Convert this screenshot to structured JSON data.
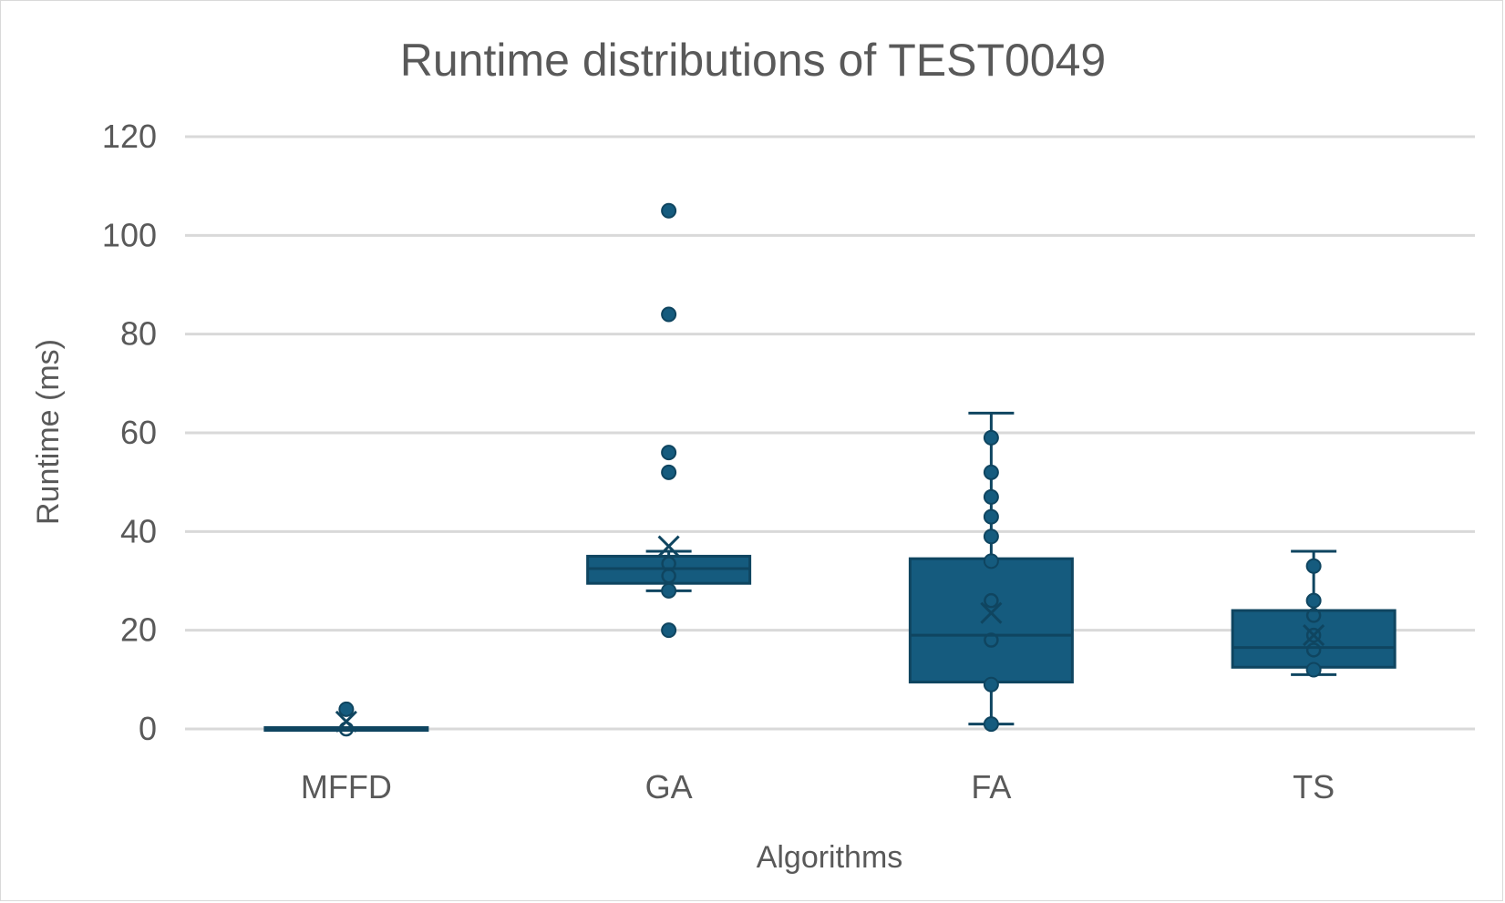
{
  "chart_data": {
    "type": "box",
    "title": "Runtime distributions of TEST0049",
    "xlabel": "Algorithms",
    "ylabel": "Runtime (ms)",
    "ylim": [
      0,
      120
    ],
    "yticks": [
      0,
      20,
      40,
      60,
      80,
      100,
      120
    ],
    "grid": true,
    "color": "#155b7e",
    "edge_color": "#0f4560",
    "categories": [
      "MFFD",
      "GA",
      "FA",
      "TS"
    ],
    "boxes": [
      {
        "category": "MFFD",
        "whisker_low": 0,
        "q1": 0,
        "median": 0,
        "q3": 0,
        "whisker_high": 0,
        "mean": 1.5,
        "inner_points": [
          0
        ],
        "outliers": [
          4
        ]
      },
      {
        "category": "GA",
        "whisker_low": 28,
        "q1": 29.5,
        "median": 32.5,
        "q3": 35,
        "whisker_high": 36,
        "mean": 37,
        "inner_points": [
          31,
          33.5
        ],
        "outliers": [
          20,
          28,
          52,
          56,
          84,
          105
        ]
      },
      {
        "category": "FA",
        "whisker_low": 1,
        "q1": 9.5,
        "median": 19,
        "q3": 34.5,
        "whisker_high": 64,
        "mean": 23.5,
        "inner_points": [
          18,
          26
        ],
        "outliers": [
          1,
          9,
          34,
          39,
          43,
          47,
          52,
          59
        ]
      },
      {
        "category": "TS",
        "whisker_low": 11,
        "q1": 12.5,
        "median": 16.5,
        "q3": 24,
        "whisker_high": 36,
        "mean": 19,
        "inner_points": [
          16,
          19,
          23
        ],
        "outliers": [
          12,
          26,
          33
        ]
      }
    ]
  }
}
